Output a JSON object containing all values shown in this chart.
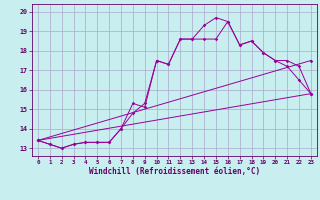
{
  "xlabel": "Windchill (Refroidissement éolien,°C)",
  "bg_color": "#c8eef0",
  "line_color": "#990099",
  "grid_color": "#aaaacc",
  "xlim": [
    -0.5,
    23.5
  ],
  "ylim": [
    12.6,
    20.4
  ],
  "xticks": [
    0,
    1,
    2,
    3,
    4,
    5,
    6,
    7,
    8,
    9,
    10,
    11,
    12,
    13,
    14,
    15,
    16,
    17,
    18,
    19,
    20,
    21,
    22,
    23
  ],
  "yticks": [
    13,
    14,
    15,
    16,
    17,
    18,
    19,
    20
  ],
  "series1_x": [
    0,
    1,
    2,
    3,
    4,
    5,
    6,
    7,
    8,
    9,
    10,
    11,
    12,
    13,
    14,
    15,
    16,
    17,
    18,
    19,
    20,
    21,
    22,
    23
  ],
  "series1_y": [
    13.4,
    13.2,
    13.0,
    13.2,
    13.3,
    13.3,
    13.3,
    14.0,
    15.3,
    15.1,
    17.5,
    17.3,
    18.6,
    18.6,
    19.3,
    19.7,
    19.5,
    18.3,
    18.5,
    17.9,
    17.5,
    17.5,
    17.2,
    15.8
  ],
  "series2_x": [
    0,
    1,
    2,
    3,
    4,
    5,
    6,
    7,
    8,
    9,
    10,
    11,
    12,
    13,
    14,
    15,
    16,
    17,
    18,
    19,
    20,
    21,
    22,
    23
  ],
  "series2_y": [
    13.4,
    13.2,
    13.0,
    13.2,
    13.3,
    13.3,
    13.3,
    14.0,
    14.8,
    15.3,
    17.5,
    17.3,
    18.6,
    18.6,
    18.6,
    18.6,
    19.5,
    18.3,
    18.5,
    17.9,
    17.5,
    17.2,
    16.5,
    15.8
  ],
  "series3_x": [
    0,
    23
  ],
  "series3_y": [
    13.4,
    17.5
  ],
  "series4_x": [
    0,
    23
  ],
  "series4_y": [
    13.4,
    15.8
  ]
}
